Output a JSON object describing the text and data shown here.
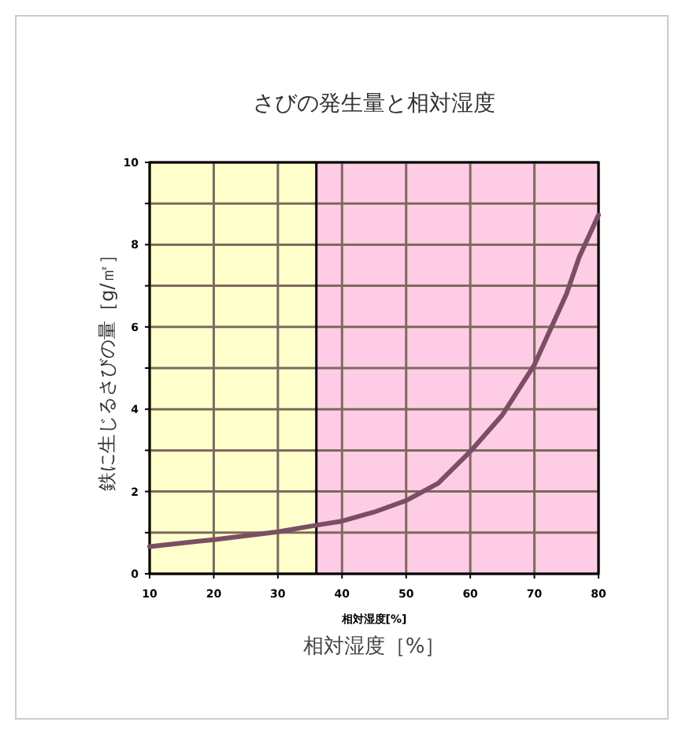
{
  "chart_data": {
    "type": "line",
    "title": "さびの発生量と相対湿度",
    "xlabel": "相対湿度［%］",
    "ylabel": "鉄に生じるさびの量［g/㎡］",
    "annotations": [
      "相対湿度[%]"
    ],
    "series": [
      {
        "color": "#7b4f63",
        "x": [
          10,
          20,
          30,
          36,
          40,
          45,
          50,
          55,
          60,
          65,
          70,
          75,
          77,
          80
        ],
        "values": [
          0.66,
          0.83,
          1.02,
          1.18,
          1.28,
          1.5,
          1.78,
          2.2,
          2.97,
          3.86,
          5.08,
          6.8,
          7.7,
          8.72
        ]
      }
    ],
    "xlim": [
      10,
      80
    ],
    "xticks": [
      10,
      20,
      30,
      40,
      50,
      60,
      70,
      80
    ],
    "ylim": [
      0,
      10
    ],
    "yticks": [
      0,
      {
        "value": 1,
        "label": null
      },
      2,
      {
        "value": 3,
        "label": null
      },
      4,
      {
        "value": 5,
        "label": null
      },
      6,
      {
        "value": 7,
        "label": null
      },
      8,
      {
        "value": 9,
        "label": null
      },
      10
    ],
    "bands": [
      {
        "axis": "x",
        "from": 10,
        "to": 36,
        "color": "#ffffcc"
      },
      {
        "axis": "x",
        "from": 36,
        "to": 80,
        "color": "#ffcce6"
      }
    ],
    "ref_lines": [
      {
        "axis": "x",
        "value": 36,
        "color": "#000000"
      }
    ],
    "grid": true,
    "marker": "none",
    "line_style": "solid"
  }
}
